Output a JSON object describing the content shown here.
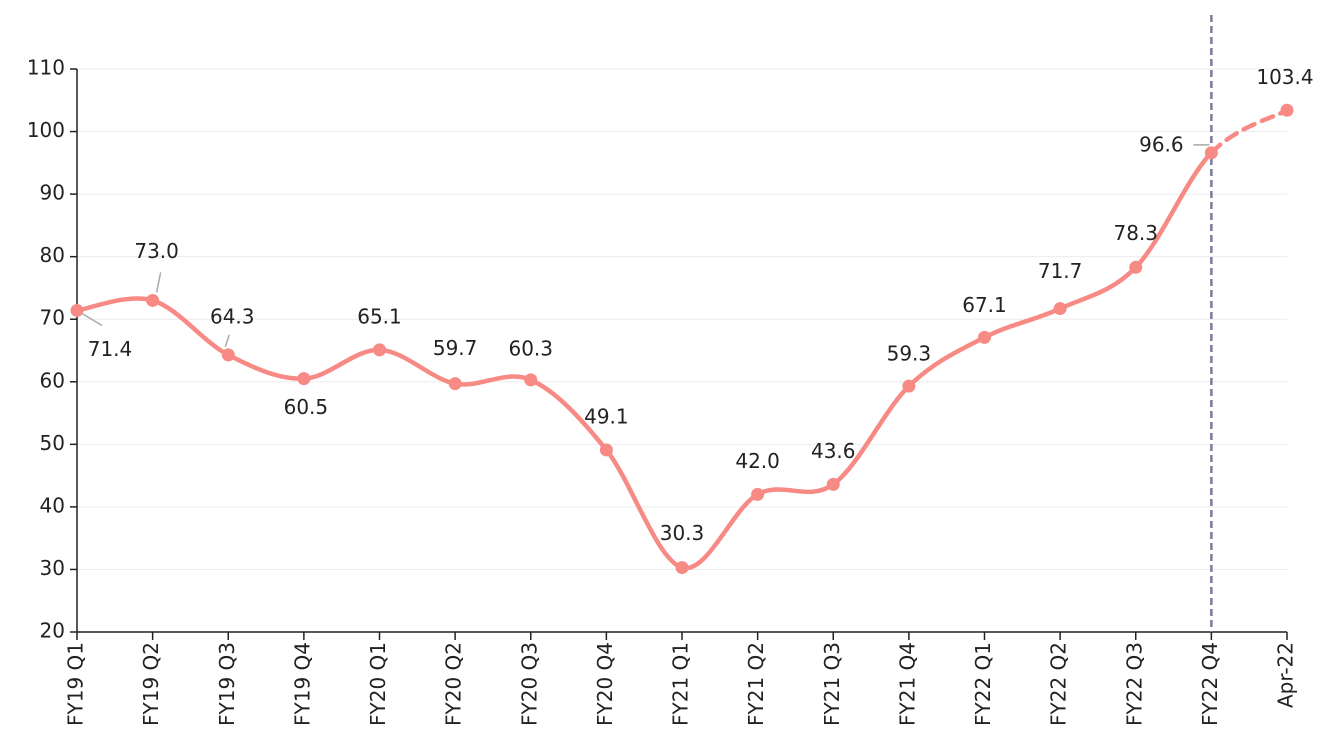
{
  "chart_data": {
    "type": "line",
    "categories": [
      "FY19 Q1",
      "FY19 Q2",
      "FY19 Q3",
      "FY19 Q4",
      "FY20 Q1",
      "FY20 Q2",
      "FY20 Q3",
      "FY20 Q4",
      "FY21 Q1",
      "FY21 Q2",
      "FY21 Q3",
      "FY21 Q4",
      "FY22 Q1",
      "FY22 Q2",
      "FY22 Q3",
      "FY22 Q4",
      "Apr-22"
    ],
    "series": [
      {
        "color": "#f78a84",
        "values": [
          71.4,
          73.0,
          64.3,
          60.5,
          65.1,
          59.7,
          60.3,
          49.1,
          30.3,
          42.0,
          43.6,
          59.3,
          67.1,
          71.7,
          78.3,
          96.6,
          103.4
        ],
        "value_labels": [
          "71.4",
          "73.0",
          "64.3",
          "60.5",
          "65.1",
          "59.7",
          "60.3",
          "49.1",
          "30.3",
          "42.0",
          "43.6",
          "59.3",
          "67.1",
          "71.7",
          "78.3",
          "96.6",
          "103.4"
        ]
      }
    ],
    "ylim": [
      20,
      110
    ],
    "yticks": [
      20,
      30,
      40,
      50,
      60,
      70,
      80,
      90,
      100,
      110
    ],
    "grid": true,
    "vline_at": "FY22 Q4",
    "dashed_after_vline": true
  }
}
